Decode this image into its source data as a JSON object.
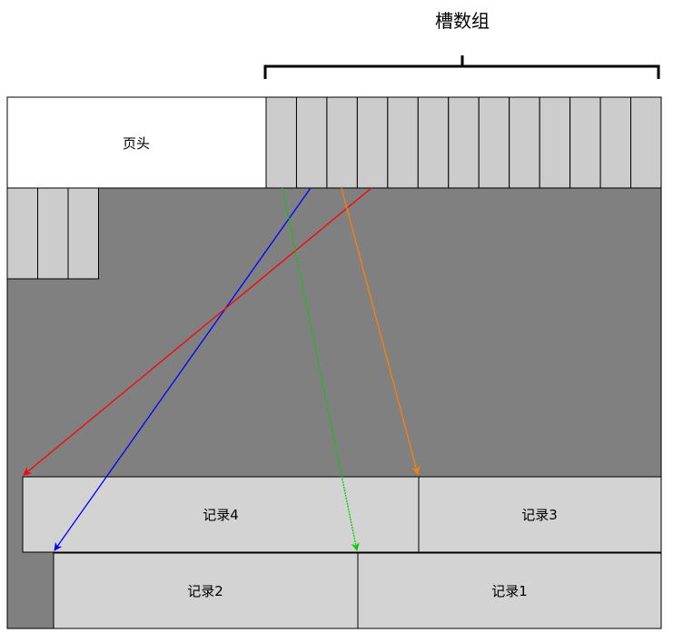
{
  "title": "槽数组",
  "header_label": "页头",
  "records": [
    {
      "id": "record-4",
      "label": "记录4"
    },
    {
      "id": "record-3",
      "label": "记录3"
    },
    {
      "id": "record-2",
      "label": "记录2"
    },
    {
      "id": "record-1",
      "label": "记录1"
    }
  ],
  "slot_count": 13,
  "free_slot_count": 3,
  "colors": {
    "page_body": "#808080",
    "slot_fill": "#cccccc",
    "record_fill": "#d3d3d3",
    "header_fill": "#ffffff",
    "border": "#000000",
    "arrows": {
      "red": "#ff0000",
      "blue": "#0000ff",
      "green": "#00cc00",
      "orange": "#ff8000"
    }
  },
  "arrows": [
    {
      "id": "slot-to-record-4",
      "color": "red",
      "target": "record-4"
    },
    {
      "id": "slot-to-record-2",
      "color": "blue",
      "target": "record-2"
    },
    {
      "id": "slot-to-record-1",
      "color": "green",
      "target": "record-1"
    },
    {
      "id": "slot-to-record-3",
      "color": "orange",
      "target": "record-3"
    }
  ]
}
